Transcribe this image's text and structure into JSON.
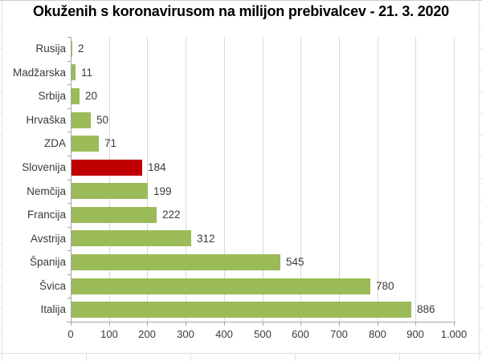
{
  "chart_data": {
    "type": "bar",
    "orientation": "horizontal",
    "title": "Okuženih s koronavirusom na milijon prebivalcev - 21. 3. 2020",
    "categories": [
      "Rusija",
      "Madžarska",
      "Srbija",
      "Hrvaška",
      "ZDA",
      "Slovenija",
      "Nemčija",
      "Francija",
      "Avstrija",
      "Španija",
      "Švica",
      "Italija"
    ],
    "values": [
      2,
      11,
      20,
      50,
      71,
      184,
      199,
      222,
      312,
      545,
      780,
      886
    ],
    "value_labels": [
      "2",
      "11",
      "20",
      "50",
      "71",
      "184",
      "199",
      "222",
      "312",
      "545",
      "780",
      "886"
    ],
    "highlight_category": "Slovenija",
    "xlim": [
      0,
      1000
    ],
    "x_ticks": [
      0,
      100,
      200,
      300,
      400,
      500,
      600,
      700,
      800,
      900,
      1000
    ],
    "x_tick_labels": [
      "0",
      "100",
      "200",
      "300",
      "400",
      "500",
      "600",
      "700",
      "800",
      "900",
      "1.000"
    ],
    "grid": "vertical-major",
    "legend": "none",
    "colors": {
      "bar_default": "#9BBB59",
      "bar_highlight": "#C00000",
      "gridline": "#D9D9D9",
      "axis": "#A6A6A6",
      "label_text": "#3A3A3A",
      "title_text": "#000000",
      "background": "#FFFFFF",
      "sheet_gridline": "#DDE3EA",
      "sheet_edge": "#C9CED6"
    }
  }
}
